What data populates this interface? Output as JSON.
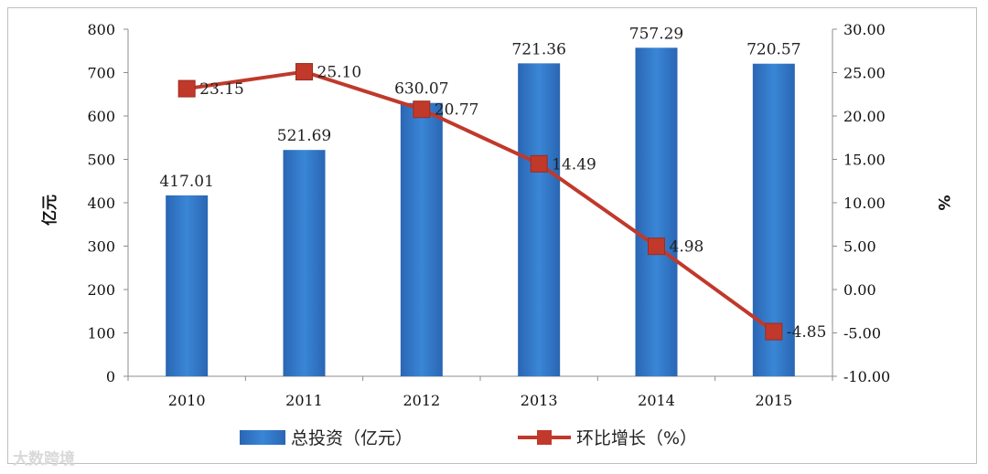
{
  "chart_data": {
    "type": "bar",
    "categories": [
      "2010",
      "2011",
      "2012",
      "2013",
      "2014",
      "2015"
    ],
    "series": [
      {
        "name": "总投资（亿元）",
        "type": "bar",
        "axis": "left",
        "color": "#2e74c4",
        "values": [
          417.01,
          521.69,
          630.07,
          721.36,
          757.29,
          720.57
        ],
        "labels": [
          "417.01",
          "521.69",
          "630.07",
          "721.36",
          "757.29",
          "720.57"
        ]
      },
      {
        "name": "环比增长（%）",
        "type": "line",
        "axis": "right",
        "color": "#c0392b",
        "values": [
          23.15,
          25.1,
          20.77,
          14.49,
          4.98,
          -4.85
        ],
        "labels": [
          "23.15",
          "25.10",
          "20.77",
          "14.49",
          "4.98",
          "-4.85"
        ]
      }
    ],
    "y_left": {
      "label": "亿元",
      "ylim": [
        0,
        800
      ],
      "ticks": [
        "0",
        "100",
        "200",
        "300",
        "400",
        "500",
        "600",
        "700",
        "800"
      ]
    },
    "y_right": {
      "label": "%",
      "ylim": [
        -10,
        30
      ],
      "ticks": [
        "-10.00",
        "-5.00",
        "0.00",
        "5.00",
        "10.00",
        "15.00",
        "20.00",
        "25.00",
        "30.00"
      ]
    },
    "grid": false,
    "legend": "bottom"
  },
  "watermark": "大数跨境"
}
